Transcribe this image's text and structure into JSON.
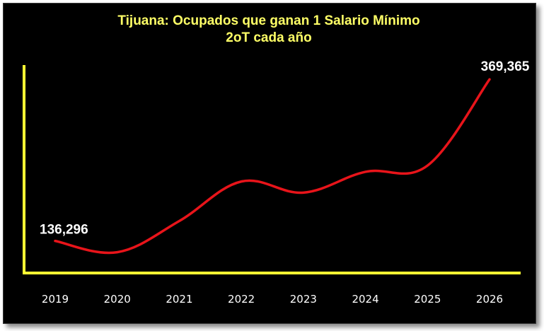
{
  "colors": {
    "background": "#000000",
    "title": "#ffff66",
    "axis": "#ffff33",
    "line": "#e8141a",
    "text": "#ffffff"
  },
  "chart_data": {
    "type": "line",
    "title": "Tijuana: Ocupados que ganan 1 Salario Mínimo",
    "subtitle": "2oT cada año",
    "xlabel": "",
    "ylabel": "",
    "categories": [
      "2019",
      "2020",
      "2021",
      "2022",
      "2023",
      "2024",
      "2025",
      "2026"
    ],
    "series": [
      {
        "values": [
          136296,
          120000,
          165000,
          222000,
          206000,
          236000,
          245000,
          369365
        ]
      }
    ],
    "data_labels": [
      {
        "index": 0,
        "text": "136,296",
        "position": "above-left"
      },
      {
        "index": 7,
        "text": "369,365",
        "position": "above"
      }
    ],
    "ylim": [
      90000,
      390000
    ],
    "grid": false,
    "legend": "none",
    "smooth": true
  }
}
